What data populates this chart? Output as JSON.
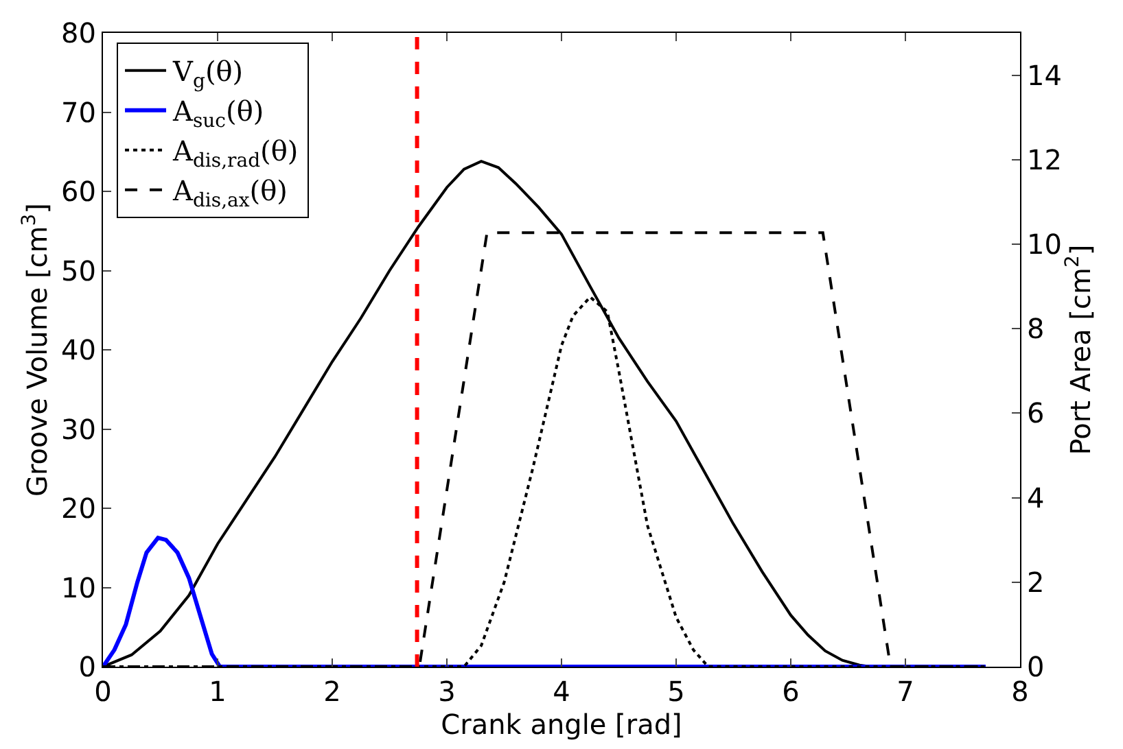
{
  "chart_data": {
    "type": "line",
    "xlabel": "Crank angle [rad]",
    "ylabel": "Groove Volume [cm$^{3}$]",
    "y2label": "Port Area [cm$^{2}$]",
    "xlim": [
      0,
      8
    ],
    "xticks": [
      0,
      1,
      2,
      3,
      4,
      5,
      6,
      7,
      8
    ],
    "ylim": [
      0,
      80
    ],
    "yticks": [
      0,
      10,
      20,
      30,
      40,
      50,
      60,
      70,
      80
    ],
    "y2lim": [
      0,
      15
    ],
    "y2ticks": [
      0,
      2,
      4,
      6,
      8,
      10,
      12,
      14
    ],
    "legend": "top left",
    "marker": "none",
    "ref_lines": [
      {
        "axis": "x",
        "value": 2.74,
        "color": "#ff0000",
        "line_style": "dashed"
      }
    ],
    "series": [
      {
        "name": "V$_{g}$(θ)",
        "color": "#000000",
        "line_style": "solid",
        "x": [
          0,
          0.25,
          0.5,
          0.75,
          1,
          1.25,
          1.5,
          1.75,
          2,
          2.25,
          2.5,
          2.75,
          3,
          3.15,
          3.3,
          3.45,
          3.6,
          3.8,
          4,
          4.25,
          4.5,
          4.75,
          5,
          5.25,
          5.5,
          5.75,
          6,
          6.15,
          6.3,
          6.45,
          6.6,
          6.7,
          7.7
        ],
        "values": [
          0,
          1.5,
          4.5,
          9,
          15.5,
          21,
          26.5,
          32.5,
          38.5,
          44,
          50,
          55.5,
          60.5,
          62.8,
          63.8,
          63,
          61,
          58,
          54.6,
          48,
          41.5,
          36,
          31,
          24.5,
          18,
          12,
          6.5,
          4,
          2,
          0.8,
          0.2,
          0,
          0
        ]
      },
      {
        "name": "A$_{suc}$(θ)",
        "color": "#0000ff",
        "line_style": "solid",
        "axis": "y2",
        "x": [
          0,
          0.1,
          0.2,
          0.3,
          0.38,
          0.48,
          0.55,
          0.65,
          0.75,
          0.85,
          0.95,
          1.02,
          7.7
        ],
        "values": [
          0,
          0.4,
          1.0,
          2.0,
          2.7,
          3.05,
          3.0,
          2.7,
          2.1,
          1.2,
          0.3,
          0,
          0
        ]
      },
      {
        "name": "A$_{dis,rad}$(θ)",
        "color": "#000000",
        "line_style": "dotted",
        "axis": "y2",
        "x": [
          0,
          3.15,
          3.3,
          3.5,
          3.75,
          4.0,
          4.1,
          4.25,
          4.4,
          4.5,
          4.75,
          5.0,
          5.15,
          5.28,
          7.7
        ],
        "values": [
          0,
          0,
          0.5,
          2.0,
          4.7,
          7.6,
          8.3,
          8.75,
          8.4,
          7.0,
          3.34,
          1.17,
          0.4,
          0,
          0
        ]
      },
      {
        "name": "A$_{dis,ax}$(θ)",
        "color": "#000000",
        "line_style": "dashed",
        "axis": "y2",
        "x": [
          0,
          2.76,
          3.35,
          6.28,
          6.87,
          7.7
        ],
        "values": [
          0,
          0,
          10.27,
          10.27,
          0,
          0
        ]
      }
    ]
  }
}
